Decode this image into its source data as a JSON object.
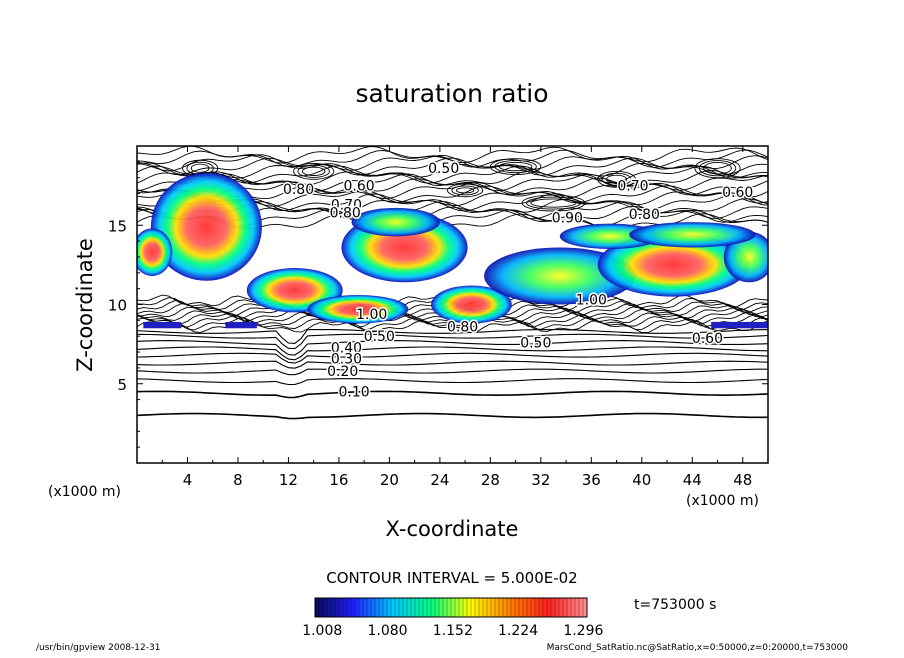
{
  "chart_data": {
    "type": "contour",
    "title": "saturation ratio",
    "xlabel": "X-coordinate",
    "ylabel": "Z-coordinate",
    "x_unit_label": "(x1000 m)",
    "y_unit_label": "(x1000 m)",
    "xlim": [
      0,
      50
    ],
    "ylim": [
      0,
      20
    ],
    "x_ticks": [
      4,
      8,
      12,
      16,
      20,
      24,
      28,
      32,
      36,
      40,
      44,
      48
    ],
    "y_ticks": [
      5,
      10,
      15
    ],
    "contour_interval_label": "CONTOUR INTERVAL = 5.000E-02",
    "time_label": "t=753000 s",
    "colorbar": {
      "tick_labels": [
        "1.008",
        "1.080",
        "1.152",
        "1.224",
        "1.296"
      ],
      "range": [
        1.0,
        1.3
      ],
      "colors": [
        "#0a0a5a",
        "#2020ff",
        "#00c8ff",
        "#00ff80",
        "#ffff00",
        "#ff8000",
        "#ff2020",
        "#ff9090"
      ]
    },
    "contour_labels": [
      {
        "text": "0.50",
        "x": 24.3,
        "z": 18.6
      },
      {
        "text": "0.60",
        "x": 17.6,
        "z": 17.5
      },
      {
        "text": "0.70",
        "x": 39.3,
        "z": 17.5
      },
      {
        "text": "0.60",
        "x": 47.6,
        "z": 17.1
      },
      {
        "text": "0.80",
        "x": 12.8,
        "z": 17.3
      },
      {
        "text": "0.70",
        "x": 16.6,
        "z": 16.3
      },
      {
        "text": "0.80",
        "x": 16.5,
        "z": 15.8
      },
      {
        "text": "0.90",
        "x": 34.1,
        "z": 15.5
      },
      {
        "text": "0.80",
        "x": 40.2,
        "z": 15.7
      },
      {
        "text": "1.00",
        "x": 36.0,
        "z": 10.3
      },
      {
        "text": "1.00",
        "x": 18.6,
        "z": 9.4
      },
      {
        "text": "0.50",
        "x": 19.2,
        "z": 8.0
      },
      {
        "text": "0.40",
        "x": 16.6,
        "z": 7.3
      },
      {
        "text": "0.30",
        "x": 16.6,
        "z": 6.6
      },
      {
        "text": "0.20",
        "x": 16.3,
        "z": 5.8
      },
      {
        "text": "0.10",
        "x": 17.2,
        "z": 4.5
      },
      {
        "text": "0.80",
        "x": 25.8,
        "z": 8.6
      },
      {
        "text": "0.50",
        "x": 31.6,
        "z": 7.6
      },
      {
        "text": "0.60",
        "x": 45.2,
        "z": 7.9
      }
    ],
    "footer_left": "/usr/bin/gpview   2008-12-31",
    "footer_right": "MarsCond_SatRatio.nc@SatRatio,x=0:50000,z=0:20000,t=753000"
  }
}
